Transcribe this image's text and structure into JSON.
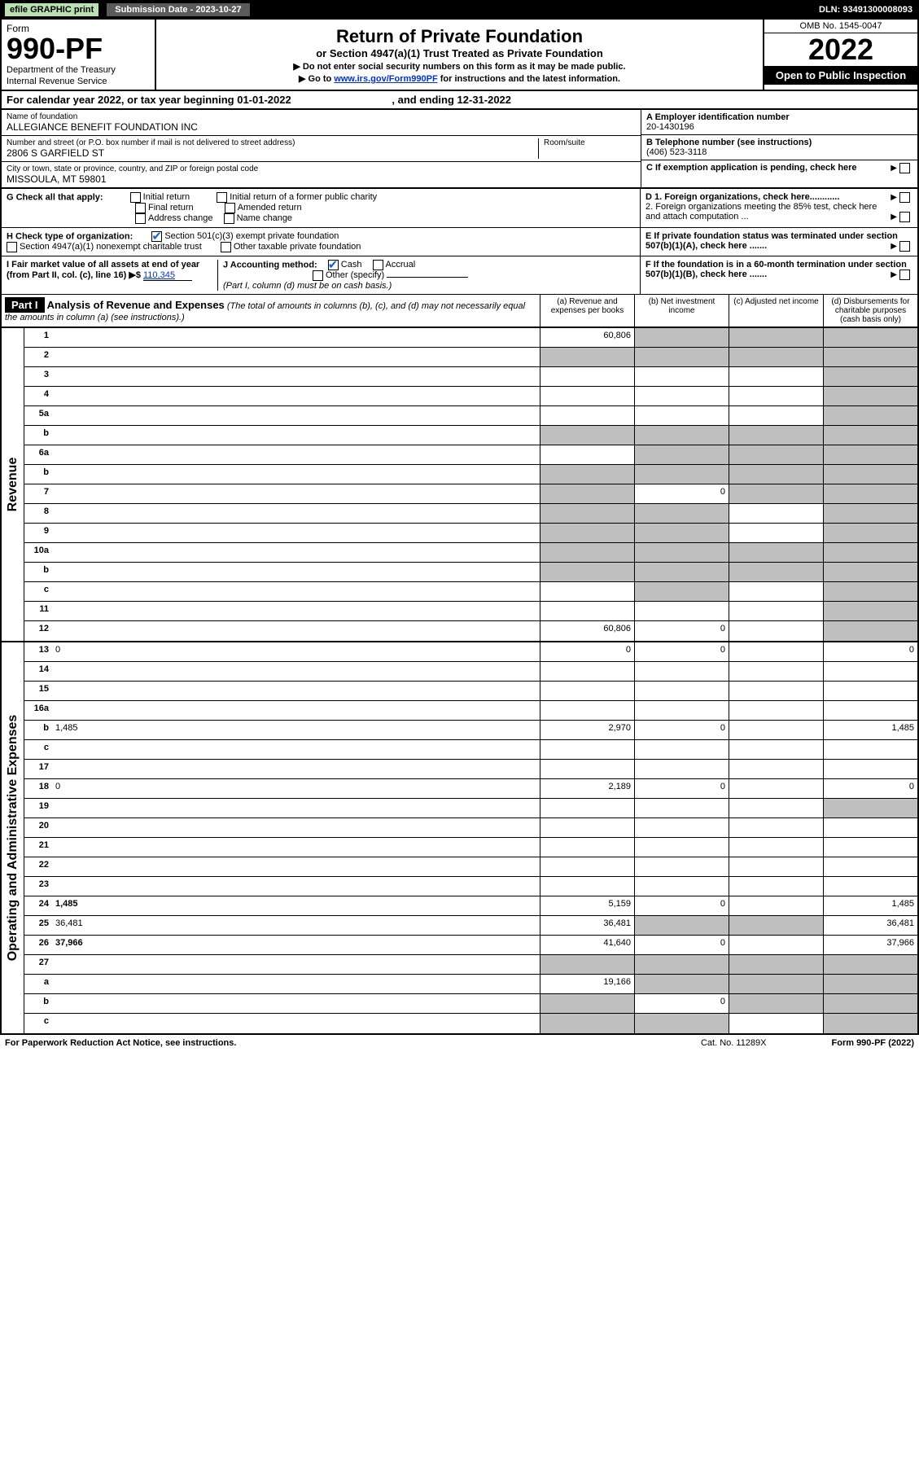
{
  "topbar": {
    "efile": "efile GRAPHIC print",
    "subdate": "Submission Date - 2023-10-27",
    "dln": "DLN: 93491300008093"
  },
  "formhead": {
    "form": "Form",
    "num": "990-PF",
    "dept": "Department of the Treasury",
    "irs": "Internal Revenue Service",
    "title": "Return of Private Foundation",
    "subtitle": "or Section 4947(a)(1) Trust Treated as Private Foundation",
    "instr1": "▶ Do not enter social security numbers on this form as it may be made public.",
    "instr2a": "▶ Go to ",
    "instr2link": "www.irs.gov/Form990PF",
    "instr2b": " for instructions and the latest information.",
    "omb": "OMB No. 1545-0047",
    "year": "2022",
    "open": "Open to Public Inspection"
  },
  "calrow": {
    "a": "For calendar year 2022, or tax year beginning 01-01-2022",
    "b": ", and ending 12-31-2022"
  },
  "id": {
    "name_lbl": "Name of foundation",
    "name": "ALLEGIANCE BENEFIT FOUNDATION INC",
    "addr_lbl": "Number and street (or P.O. box number if mail is not delivered to street address)",
    "addr": "2806 S GARFIELD ST",
    "room_lbl": "Room/suite",
    "city_lbl": "City or town, state or province, country, and ZIP or foreign postal code",
    "city": "MISSOULA, MT  59801",
    "ein_lbl": "A Employer identification number",
    "ein": "20-1430196",
    "tel_lbl": "B Telephone number (see instructions)",
    "tel": "(406) 523-3118",
    "c": "C If exemption application is pending, check here"
  },
  "g": {
    "lbl": "G Check all that apply:",
    "o1": "Initial return",
    "o2": "Initial return of a former public charity",
    "o3": "Final return",
    "o4": "Amended return",
    "o5": "Address change",
    "o6": "Name change"
  },
  "d": {
    "d1": "D 1. Foreign organizations, check here............",
    "d2": "2. Foreign organizations meeting the 85% test, check here and attach computation ..."
  },
  "h": {
    "lbl": "H Check type of organization:",
    "h1": "Section 501(c)(3) exempt private foundation",
    "h2": "Section 4947(a)(1) nonexempt charitable trust",
    "h3": "Other taxable private foundation"
  },
  "e": "E If private foundation status was terminated under section 507(b)(1)(A), check here .......",
  "i": {
    "lbl": "I Fair market value of all assets at end of year (from Part II, col. (c), line 16) ▶$ ",
    "val": "110,345"
  },
  "j": {
    "lbl": "J Accounting method:",
    "cash": "Cash",
    "accrual": "Accrual",
    "other": "Other (specify)",
    "note": "(Part I, column (d) must be on cash basis.)"
  },
  "f": "F If the foundation is in a 60-month termination under section 507(b)(1)(B), check here .......",
  "part1": {
    "label": "Part I",
    "title": "Analysis of Revenue and Expenses",
    "titlepar": " (The total of amounts in columns (b), (c), and (d) may not necessarily equal the amounts in column (a) (see instructions).)",
    "cola": "(a) Revenue and expenses per books",
    "colb": "(b) Net investment income",
    "colc": "(c) Adjusted net income",
    "cold": "(d) Disbursements for charitable purposes (cash basis only)"
  },
  "revenue": {
    "side": "Revenue",
    "rows": [
      {
        "n": "1",
        "d": "",
        "a": "60,806",
        "b": "",
        "c": "",
        "gb": true,
        "gc": true,
        "gd": true
      },
      {
        "n": "2",
        "d": "",
        "a": "",
        "b": "",
        "c": "",
        "ga": true,
        "gb": true,
        "gc": true,
        "gd": true
      },
      {
        "n": "3",
        "d": "",
        "a": "",
        "b": "",
        "c": "",
        "gd": true
      },
      {
        "n": "4",
        "d": "",
        "a": "",
        "b": "",
        "c": "",
        "gd": true
      },
      {
        "n": "5a",
        "d": "",
        "a": "",
        "b": "",
        "c": "",
        "gd": true
      },
      {
        "n": "b",
        "d": "",
        "a": "",
        "b": "",
        "c": "",
        "ga": true,
        "gb": true,
        "gc": true,
        "gd": true
      },
      {
        "n": "6a",
        "d": "",
        "a": "",
        "b": "",
        "c": "",
        "gb": true,
        "gc": true,
        "gd": true
      },
      {
        "n": "b",
        "d": "",
        "a": "",
        "b": "",
        "c": "",
        "ga": true,
        "gb": true,
        "gc": true,
        "gd": true
      },
      {
        "n": "7",
        "d": "",
        "a": "",
        "b": "0",
        "c": "",
        "ga": true,
        "gc": true,
        "gd": true
      },
      {
        "n": "8",
        "d": "",
        "a": "",
        "b": "",
        "c": "",
        "ga": true,
        "gb": true,
        "gd": true
      },
      {
        "n": "9",
        "d": "",
        "a": "",
        "b": "",
        "c": "",
        "ga": true,
        "gb": true,
        "gd": true
      },
      {
        "n": "10a",
        "d": "",
        "a": "",
        "b": "",
        "c": "",
        "ga": true,
        "gb": true,
        "gc": true,
        "gd": true
      },
      {
        "n": "b",
        "d": "",
        "a": "",
        "b": "",
        "c": "",
        "ga": true,
        "gb": true,
        "gc": true,
        "gd": true
      },
      {
        "n": "c",
        "d": "",
        "a": "",
        "b": "",
        "c": "",
        "gb": true,
        "gd": true
      },
      {
        "n": "11",
        "d": "",
        "a": "",
        "b": "",
        "c": "",
        "gd": true
      },
      {
        "n": "12",
        "d": "",
        "a": "60,806",
        "b": "0",
        "c": "",
        "bold": true,
        "gd": true
      }
    ]
  },
  "expenses": {
    "side": "Operating and Administrative Expenses",
    "rows": [
      {
        "n": "13",
        "d": "0",
        "a": "0",
        "b": "0",
        "c": ""
      },
      {
        "n": "14",
        "d": "",
        "a": "",
        "b": "",
        "c": ""
      },
      {
        "n": "15",
        "d": "",
        "a": "",
        "b": "",
        "c": ""
      },
      {
        "n": "16a",
        "d": "",
        "a": "",
        "b": "",
        "c": ""
      },
      {
        "n": "b",
        "d": "1,485",
        "a": "2,970",
        "b": "0",
        "c": ""
      },
      {
        "n": "c",
        "d": "",
        "a": "",
        "b": "",
        "c": ""
      },
      {
        "n": "17",
        "d": "",
        "a": "",
        "b": "",
        "c": ""
      },
      {
        "n": "18",
        "d": "0",
        "a": "2,189",
        "b": "0",
        "c": ""
      },
      {
        "n": "19",
        "d": "",
        "a": "",
        "b": "",
        "c": "",
        "gd": true
      },
      {
        "n": "20",
        "d": "",
        "a": "",
        "b": "",
        "c": ""
      },
      {
        "n": "21",
        "d": "",
        "a": "",
        "b": "",
        "c": ""
      },
      {
        "n": "22",
        "d": "",
        "a": "",
        "b": "",
        "c": ""
      },
      {
        "n": "23",
        "d": "",
        "a": "",
        "b": "",
        "c": ""
      },
      {
        "n": "24",
        "d": "1,485",
        "a": "5,159",
        "b": "0",
        "c": "",
        "bold": true
      },
      {
        "n": "25",
        "d": "36,481",
        "a": "36,481",
        "b": "",
        "c": "",
        "gb": true,
        "gc": true
      },
      {
        "n": "26",
        "d": "37,966",
        "a": "41,640",
        "b": "0",
        "c": "",
        "bold": true
      },
      {
        "n": "27",
        "d": "",
        "a": "",
        "b": "",
        "c": "",
        "ga": true,
        "gb": true,
        "gc": true,
        "gd": true
      },
      {
        "n": "a",
        "d": "",
        "a": "19,166",
        "b": "",
        "c": "",
        "bold": true,
        "gb": true,
        "gc": true,
        "gd": true
      },
      {
        "n": "b",
        "d": "",
        "a": "",
        "b": "0",
        "c": "",
        "bold": true,
        "ga": true,
        "gc": true,
        "gd": true
      },
      {
        "n": "c",
        "d": "",
        "a": "",
        "b": "",
        "c": "",
        "bold": true,
        "ga": true,
        "gb": true,
        "gd": true
      }
    ]
  },
  "footer": {
    "left": "For Paperwork Reduction Act Notice, see instructions.",
    "mid": "Cat. No. 11289X",
    "right": "Form 990-PF (2022)"
  }
}
